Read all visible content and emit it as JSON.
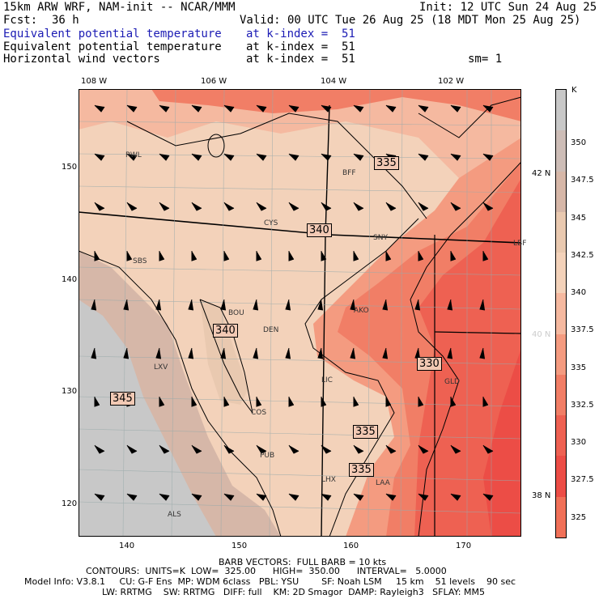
{
  "header": {
    "model_line": "15km ARW WRF, NAM-init -- NCAR/MMM",
    "init": "Init: 12 UTC Sun 24 Aug 25",
    "fcst_label": "Fcst:",
    "fcst_value": "36 h",
    "valid": "Valid: 00 UTC Tue 26 Aug 25 (18 MDT Mon 25 Aug 25)",
    "fields": [
      {
        "name": "Equivalent potential temperature",
        "level": "at k-index =  51",
        "color": "#1b1bb4"
      },
      {
        "name": "Equivalent potential temperature",
        "level": "at k-index =  51",
        "color": "#000000"
      },
      {
        "name": "Horizontal wind vectors",
        "level": "at k-index =  51",
        "color": "#000000"
      }
    ],
    "smoothing": "sm= 1"
  },
  "map": {
    "lon_labels": [
      "108 W",
      "106 W",
      "104 W",
      "102 W"
    ],
    "lat_labels": [
      "42 N",
      "40 N",
      "38 N"
    ],
    "x_ticks": [
      "140",
      "150",
      "160",
      "170"
    ],
    "y_ticks": [
      "150",
      "140",
      "130",
      "120"
    ],
    "cities": [
      "RWL",
      "BFF",
      "CYS",
      "SNY",
      "LBF",
      "SBS",
      "BOU",
      "DEN",
      "AKO",
      "LXV",
      "LIC",
      "GLD",
      "COS",
      "PUB",
      "LHX",
      "LAA",
      "ALS"
    ],
    "contour_labels": [
      "335",
      "340",
      "340",
      "330",
      "345",
      "335",
      "335"
    ]
  },
  "colorbar": {
    "unit": "K",
    "ticks": [
      "350",
      "347.5",
      "345",
      "342.5",
      "340",
      "337.5",
      "335",
      "332.5",
      "330",
      "327.5",
      "325"
    ],
    "colors": [
      "#c8c8c8",
      "#cdbdb7",
      "#d6b7a8",
      "#e9c9b0",
      "#f3d2ba",
      "#f5b9a0",
      "#f49b80",
      "#f17e66",
      "#ee6152",
      "#ec4d46",
      "#f07058"
    ]
  },
  "footer": {
    "barb": "BARB VECTORS:  FULL BARB = 10 kts",
    "contours": "CONTOURS:  UNITS=K  LOW=  325.00      HIGH=  350.00      INTERVAL=   5.0000",
    "model_info": "Model Info: V3.8.1     CU: G-F Ens  MP: WDM 6class   PBL: YSU        SF: Noah LSM     15 km    51 levels    90 sec",
    "physics": "LW: RRTMG    SW: RRTMG   DIFF: full    KM: 2D Smagor  DAMP: Rayleigh3   SFLAY: MM5"
  }
}
